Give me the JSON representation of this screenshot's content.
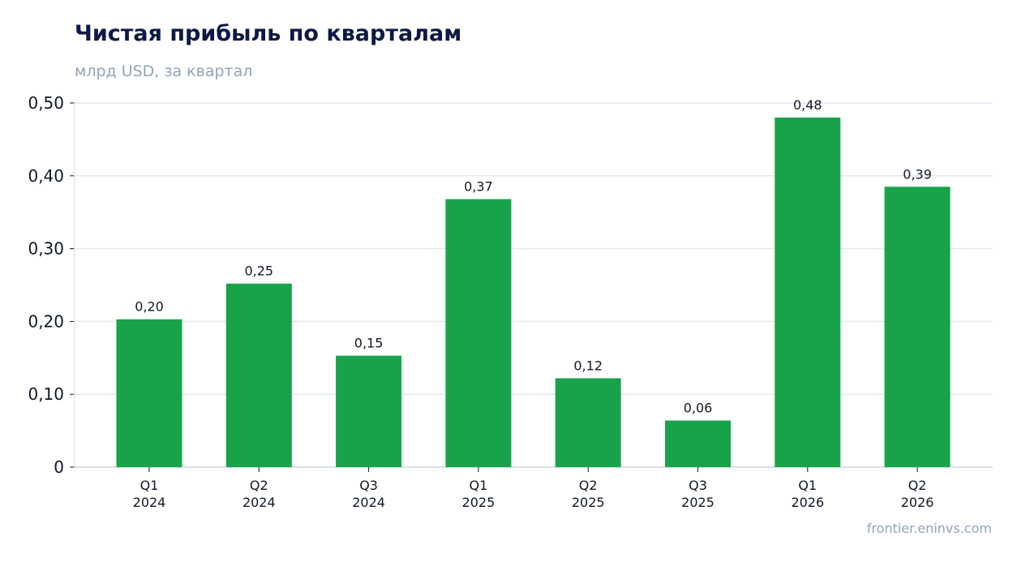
{
  "chart_data": {
    "type": "bar",
    "title": "Чистая прибыль по кварталам",
    "subtitle": "млрд USD, за квартал",
    "categories": [
      [
        "Q1",
        "2024"
      ],
      [
        "Q2",
        "2024"
      ],
      [
        "Q3",
        "2024"
      ],
      [
        "Q1",
        "2025"
      ],
      [
        "Q2",
        "2025"
      ],
      [
        "Q3",
        "2025"
      ],
      [
        "Q1",
        "2026"
      ],
      [
        "Q2",
        "2026"
      ]
    ],
    "values": [
      0.203,
      0.252,
      0.153,
      0.368,
      0.122,
      0.064,
      0.48,
      0.385
    ],
    "data_labels": [
      "0,20",
      "0,25",
      "0,15",
      "0,37",
      "0,12",
      "0,06",
      "0,48",
      "0,39"
    ],
    "yticks": [
      0,
      0.1,
      0.2,
      0.3,
      0.4,
      0.5
    ],
    "ytick_labels": [
      "0",
      "0,10",
      "0,20",
      "0,30",
      "0,40",
      "0,50"
    ],
    "ylim": [
      0,
      0.5
    ],
    "grid": true,
    "bar_color": "#18a34a",
    "grid_color": "#e2e8f0",
    "title_color": "#0e1a45",
    "muted_color": "#94a3b8"
  },
  "source": "frontier.eninvs.com"
}
